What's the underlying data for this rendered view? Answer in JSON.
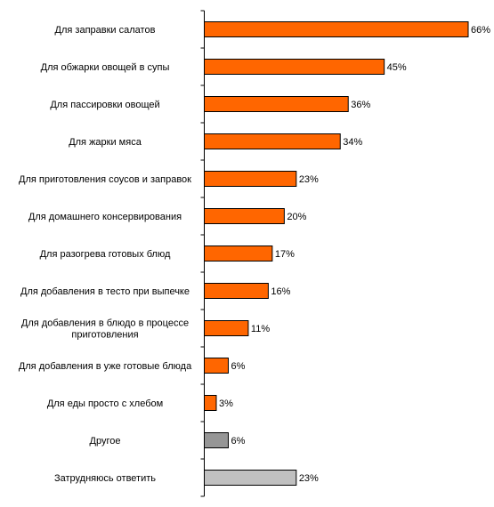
{
  "chart_data": {
    "type": "bar",
    "orientation": "horizontal",
    "categories": [
      "Для заправки салатов",
      "Для обжарки овощей в супы",
      "Для пассировки овощей",
      "Для жарки мяса",
      "Для приготовления соусов и заправок",
      "Для домашнего консервирования",
      "Для разогрева готовых блюд",
      "Для добавления в тесто при выпечке",
      "Для добавления в блюдо в процессе приготовления",
      "Для добавления в уже готовые блюда",
      "Для еды просто с хлебом",
      "Другое",
      "Затрудняюсь ответить"
    ],
    "values": [
      66,
      45,
      36,
      34,
      23,
      20,
      17,
      16,
      11,
      6,
      3,
      6,
      23
    ],
    "value_labels": [
      "66%",
      "45%",
      "36%",
      "34%",
      "23%",
      "20%",
      "17%",
      "16%",
      "11%",
      "6%",
      "3%",
      "6%",
      "23%"
    ],
    "bar_colors": [
      "#FF6600",
      "#FF6600",
      "#FF6600",
      "#FF6600",
      "#FF6600",
      "#FF6600",
      "#FF6600",
      "#FF6600",
      "#FF6600",
      "#FF6600",
      "#FF6600",
      "#969696",
      "#C0C0C0"
    ],
    "xlim": [
      0,
      66
    ],
    "title": "",
    "xlabel": "",
    "ylabel": "",
    "grid": false,
    "legend": "none"
  }
}
